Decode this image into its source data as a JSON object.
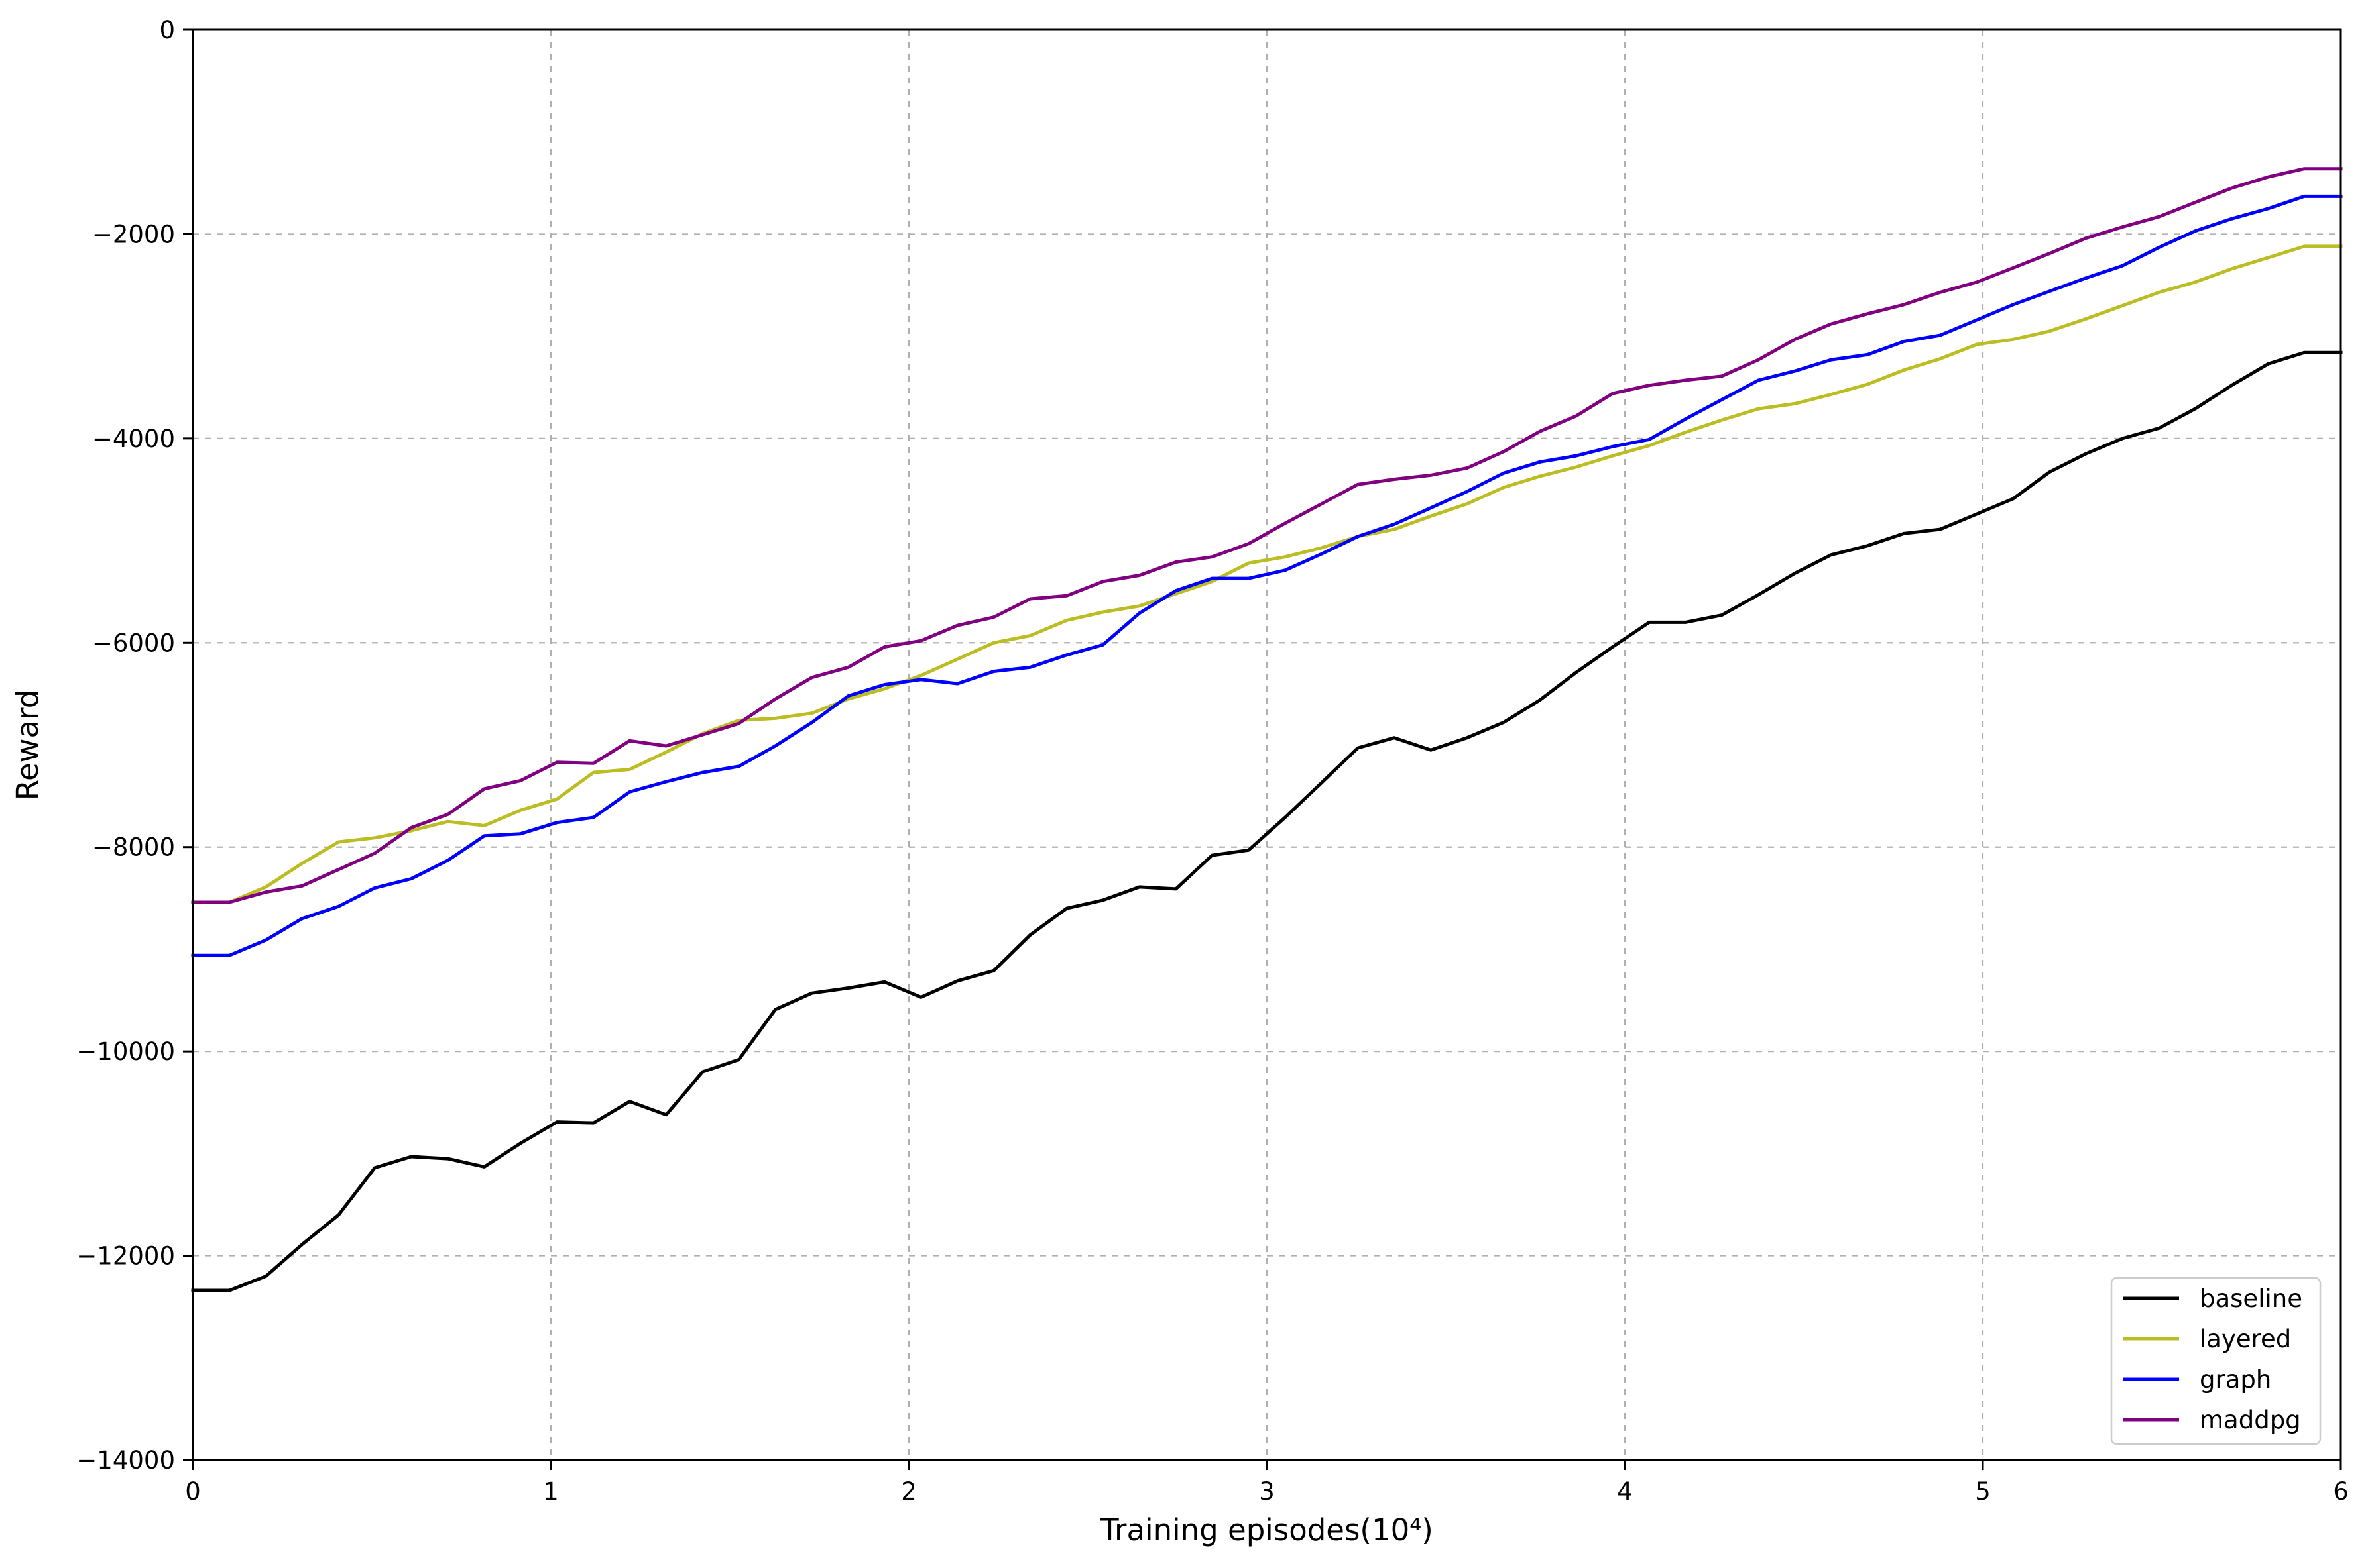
{
  "chart_data": {
    "type": "line",
    "title": "",
    "xlabel": "Training episodes(10⁴)",
    "ylabel": "Reward",
    "xlim": [
      0,
      6
    ],
    "ylim": [
      -14000,
      0
    ],
    "xticks": [
      0,
      1,
      2,
      3,
      4,
      5,
      6
    ],
    "xtick_labels": [
      "0",
      "1",
      "2",
      "3",
      "4",
      "5",
      "6"
    ],
    "yticks": [
      0,
      -2000,
      -4000,
      -6000,
      -8000,
      -10000,
      -12000,
      -14000
    ],
    "ytick_labels": [
      "0",
      "−2000",
      "−4000",
      "−6000",
      "−8000",
      "−10000",
      "−12000",
      "−14000"
    ],
    "grid": true,
    "legend_position": "lower-right",
    "x": [
      0,
      0.102,
      0.204,
      0.305,
      0.407,
      0.508,
      0.61,
      0.712,
      0.814,
      0.915,
      1.017,
      1.119,
      1.22,
      1.322,
      1.424,
      1.525,
      1.627,
      1.729,
      1.831,
      1.932,
      2.034,
      2.136,
      2.237,
      2.339,
      2.441,
      2.542,
      2.644,
      2.746,
      2.847,
      2.949,
      3.051,
      3.153,
      3.254,
      3.356,
      3.458,
      3.559,
      3.661,
      3.763,
      3.864,
      3.966,
      4.068,
      4.169,
      4.271,
      4.373,
      4.475,
      4.576,
      4.678,
      4.78,
      4.881,
      4.983,
      5.085,
      5.186,
      5.288,
      5.39,
      5.492,
      5.593,
      5.695,
      5.797,
      5.898,
      6.0
    ],
    "series": [
      {
        "name": "baseline",
        "color": "#000000",
        "values": [
          -12340,
          -12340,
          -12200,
          -11890,
          -11600,
          -11140,
          -11030,
          -11050,
          -11130,
          -10900,
          -10690,
          -10700,
          -10490,
          -10620,
          -10200,
          -10080,
          -9590,
          -9430,
          -9380,
          -9320,
          -9470,
          -9310,
          -9210,
          -8860,
          -8600,
          -8520,
          -8390,
          -8410,
          -8080,
          -8030,
          -7710,
          -7370,
          -7030,
          -6930,
          -7050,
          -6930,
          -6780,
          -6560,
          -6290,
          -6040,
          -5800,
          -5800,
          -5730,
          -5530,
          -5320,
          -5140,
          -5050,
          -4930,
          -4890,
          -4740,
          -4590,
          -4330,
          -4150,
          -4000,
          -3900,
          -3710,
          -3480,
          -3270,
          -3160,
          -3160
        ]
      },
      {
        "name": "layered",
        "color": "#bcbd22",
        "values": [
          -8540,
          -8540,
          -8390,
          -8160,
          -7950,
          -7910,
          -7840,
          -7750,
          -7790,
          -7640,
          -7530,
          -7270,
          -7240,
          -7070,
          -6890,
          -6760,
          -6740,
          -6690,
          -6550,
          -6450,
          -6320,
          -6160,
          -6000,
          -5930,
          -5780,
          -5700,
          -5640,
          -5520,
          -5400,
          -5220,
          -5160,
          -5070,
          -4960,
          -4890,
          -4760,
          -4640,
          -4480,
          -4370,
          -4280,
          -4170,
          -4070,
          -3940,
          -3820,
          -3710,
          -3660,
          -3570,
          -3470,
          -3330,
          -3220,
          -3080,
          -3030,
          -2950,
          -2830,
          -2700,
          -2570,
          -2470,
          -2340,
          -2230,
          -2120,
          -2120
        ]
      },
      {
        "name": "graph",
        "color": "#0000ff",
        "values": [
          -9060,
          -9060,
          -8910,
          -8700,
          -8580,
          -8400,
          -8310,
          -8130,
          -7890,
          -7870,
          -7760,
          -7710,
          -7460,
          -7360,
          -7270,
          -7210,
          -7010,
          -6780,
          -6520,
          -6410,
          -6360,
          -6400,
          -6280,
          -6240,
          -6120,
          -6020,
          -5710,
          -5490,
          -5370,
          -5370,
          -5290,
          -5130,
          -4960,
          -4840,
          -4680,
          -4520,
          -4340,
          -4230,
          -4170,
          -4080,
          -4010,
          -3810,
          -3620,
          -3430,
          -3340,
          -3230,
          -3180,
          -3050,
          -2990,
          -2840,
          -2690,
          -2560,
          -2430,
          -2310,
          -2130,
          -1970,
          -1850,
          -1750,
          -1630,
          -1630
        ]
      },
      {
        "name": "maddpg",
        "color": "#800080",
        "values": [
          -8540,
          -8540,
          -8440,
          -8380,
          -8220,
          -8060,
          -7810,
          -7680,
          -7430,
          -7350,
          -7170,
          -7180,
          -6960,
          -7010,
          -6900,
          -6790,
          -6550,
          -6340,
          -6240,
          -6040,
          -5980,
          -5830,
          -5750,
          -5570,
          -5540,
          -5400,
          -5340,
          -5210,
          -5160,
          -5030,
          -4830,
          -4640,
          -4450,
          -4400,
          -4360,
          -4290,
          -4130,
          -3930,
          -3780,
          -3560,
          -3480,
          -3430,
          -3390,
          -3230,
          -3030,
          -2880,
          -2780,
          -2690,
          -2570,
          -2470,
          -2330,
          -2190,
          -2040,
          -1930,
          -1830,
          -1690,
          -1550,
          -1440,
          -1360,
          -1360
        ]
      }
    ]
  }
}
